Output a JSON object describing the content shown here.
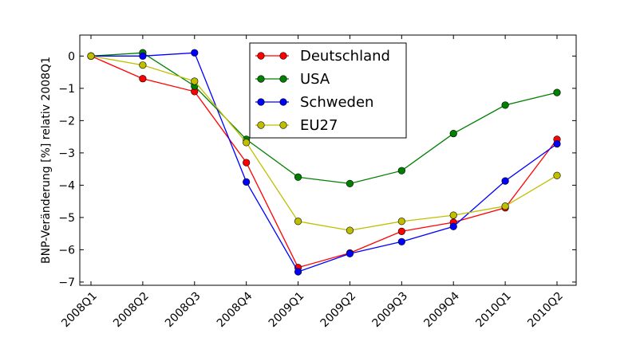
{
  "chart_data": {
    "type": "line",
    "title": "",
    "xlabel": "",
    "ylabel": "BNP-Veränderung [%] relativ 2008Q1",
    "categories": [
      "2008Q1",
      "2008Q2",
      "2008Q3",
      "2008Q4",
      "2009Q1",
      "2009Q2",
      "2009Q3",
      "2009Q4",
      "2010Q1",
      "2010Q2"
    ],
    "ylim": [
      -7.1,
      0.65
    ],
    "yticks": [
      0,
      -1,
      -2,
      -3,
      -4,
      -5,
      -6,
      -7
    ],
    "ytick_labels": [
      "0",
      "−1",
      "−2",
      "−3",
      "−4",
      "−5",
      "−6",
      "−7"
    ],
    "grid": false,
    "legend_position": "top-center",
    "series": [
      {
        "name": "Deutschland",
        "color": "#ff0000",
        "marker_color": "#ff0000",
        "values": [
          0,
          -0.7,
          -1.1,
          -3.3,
          -6.55,
          -6.1,
          -5.43,
          -5.15,
          -4.7,
          -2.58
        ]
      },
      {
        "name": "USA",
        "color": "#007f00",
        "marker_color": "#007f00",
        "values": [
          0,
          0.1,
          -0.93,
          -2.58,
          -3.75,
          -3.95,
          -3.55,
          -2.4,
          -1.52,
          -1.13
        ]
      },
      {
        "name": "Schweden",
        "color": "#0000ff",
        "marker_color": "#0000ff",
        "values": [
          0,
          0.0,
          0.1,
          -3.9,
          -6.68,
          -6.12,
          -5.75,
          -5.28,
          -3.87,
          -2.72
        ]
      },
      {
        "name": "EU27",
        "color": "#bfbf00",
        "marker_color": "#bfbf00",
        "values": [
          0,
          -0.28,
          -0.78,
          -2.68,
          -5.12,
          -5.4,
          -5.12,
          -4.93,
          -4.65,
          -3.7
        ]
      }
    ]
  }
}
